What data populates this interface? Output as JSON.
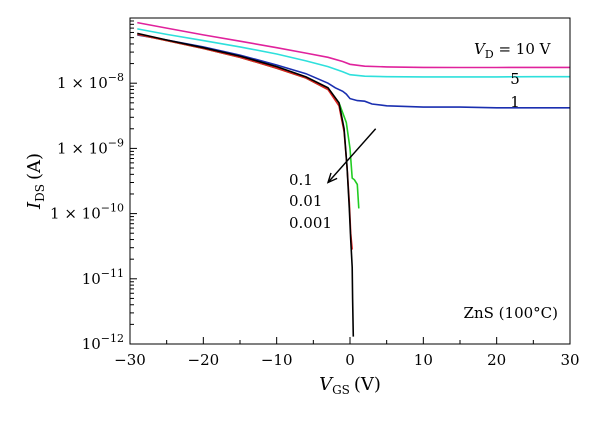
{
  "chart_data": {
    "type": "line",
    "xlabel": "V",
    "xlabel_sub": "GS",
    "xlabel_unit": "(V)",
    "ylabel": "I",
    "ylabel_sub": "DS",
    "ylabel_unit": "(A)",
    "xlim": [
      -30,
      30
    ],
    "ylim": [
      1e-12,
      1e-07
    ],
    "y_scale": "log",
    "x_ticks": [
      -30,
      -20,
      -10,
      0,
      10,
      20,
      30
    ],
    "x_tick_labels": [
      "−30",
      "−20",
      "−10",
      "0",
      "10",
      "20",
      "30"
    ],
    "y_tick_labels": [
      {
        "value": 1e-12,
        "base": "10",
        "exp": "−12"
      },
      {
        "value": 1e-11,
        "base": "10",
        "exp": "−11"
      },
      {
        "value": 1e-10,
        "base": "1 × 10",
        "exp": "−10"
      },
      {
        "value": 1e-09,
        "base": "1 × 10",
        "exp": "−9"
      },
      {
        "value": 1e-08,
        "base": "1 × 10",
        "exp": "−8"
      }
    ],
    "grid": false,
    "annotations": {
      "vd_label": "V",
      "vd_sub": "D",
      "vd_value": " = 10 V",
      "label_5": "5",
      "label_1": "1",
      "label_01": "0.1",
      "label_001": "0.01",
      "label_0001": "0.001",
      "material": "ZnS (100°C)"
    },
    "arrow": {
      "from": [
        3.5,
        2e-09
      ],
      "to": [
        -3.0,
        3e-10
      ]
    },
    "series": [
      {
        "color": "#e0229c",
        "x": [
          -29,
          -25,
          -20,
          -15,
          -10,
          -6,
          -3,
          -1,
          0,
          2,
          5,
          10,
          15,
          20,
          25,
          30
        ],
        "y": [
          8.5e-08,
          7e-08,
          5.5e-08,
          4.4e-08,
          3.5e-08,
          2.9e-08,
          2.5e-08,
          2.15e-08,
          1.95e-08,
          1.82e-08,
          1.78e-08,
          1.75e-08,
          1.74e-08,
          1.74e-08,
          1.75e-08,
          1.75e-08
        ]
      },
      {
        "color": "#2ee0dc",
        "x": [
          -29,
          -25,
          -20,
          -15,
          -10,
          -6,
          -3,
          -1,
          0,
          2,
          5,
          10,
          15,
          20,
          25,
          30
        ],
        "y": [
          6.8e-08,
          5.6e-08,
          4.5e-08,
          3.6e-08,
          2.8e-08,
          2.2e-08,
          1.8e-08,
          1.5e-08,
          1.35e-08,
          1.28e-08,
          1.26e-08,
          1.25e-08,
          1.25e-08,
          1.25e-08,
          1.26e-08,
          1.26e-08
        ]
      },
      {
        "color": "#1a2fb0",
        "x": [
          -29,
          -25,
          -20,
          -15,
          -10,
          -6,
          -3,
          -2,
          -1,
          -0.5,
          0,
          1,
          2,
          3,
          5,
          10,
          15,
          20,
          25,
          30
        ],
        "y": [
          5.5e-08,
          4.6e-08,
          3.6e-08,
          2.7e-08,
          1.9e-08,
          1.4e-08,
          1e-08,
          8.5e-09,
          7.5e-09,
          6.8e-09,
          5.8e-09,
          5.4e-09,
          5.3e-09,
          4.8e-09,
          4.5e-09,
          4.3e-09,
          4.3e-09,
          4.2e-09,
          4.2e-09,
          4.2e-09
        ]
      },
      {
        "color": "#22cc22",
        "x": [
          -29,
          -25,
          -20,
          -15,
          -10,
          -6,
          -3,
          -1.5,
          -0.5,
          0,
          0.3,
          0.6,
          1.0,
          1.2
        ],
        "y": [
          5.6e-08,
          4.5e-08,
          3.4e-08,
          2.5e-08,
          1.7e-08,
          1.2e-08,
          8e-09,
          5e-09,
          2.5e-09,
          1e-09,
          3.5e-10,
          3.3e-10,
          2.8e-10,
          1.2e-10
        ]
      },
      {
        "color": "#dd2222",
        "x": [
          -29,
          -25,
          -20,
          -15,
          -10,
          -6,
          -3,
          -1.5,
          -0.8,
          -0.4,
          -0.1,
          0.1,
          0.3
        ],
        "y": [
          5.6e-08,
          4.5e-08,
          3.4e-08,
          2.5e-08,
          1.7e-08,
          1.2e-08,
          8e-09,
          4.5e-09,
          1.8e-09,
          5e-10,
          1.5e-10,
          5e-11,
          2.8e-11
        ]
      },
      {
        "color": "#000000",
        "x": [
          -29,
          -25,
          -20,
          -15,
          -10,
          -6,
          -3,
          -1.5,
          -0.8,
          -0.4,
          -0.1,
          0.1,
          0.3,
          0.35,
          0.45
        ],
        "y": [
          5.8e-08,
          4.6e-08,
          3.5e-08,
          2.6e-08,
          1.8e-08,
          1.25e-08,
          8.5e-09,
          5e-09,
          2e-09,
          5e-10,
          1.2e-10,
          4e-11,
          1.5e-11,
          5e-12,
          1.3e-12
        ]
      }
    ]
  }
}
